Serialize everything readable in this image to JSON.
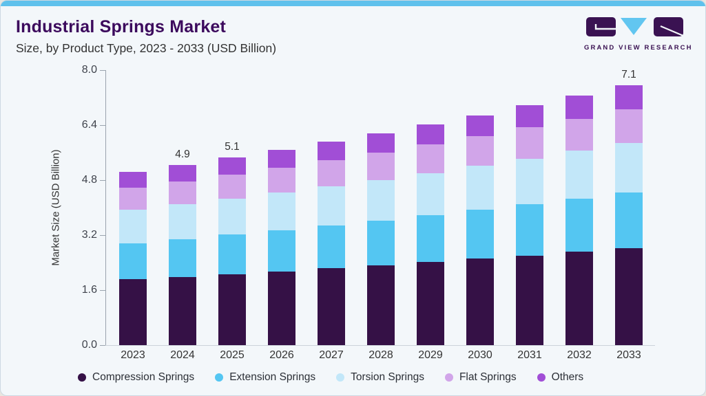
{
  "header": {
    "title": "Industrial Springs Market",
    "subtitle": "Size, by Product Type, 2023 - 2033 (USD Billion)",
    "brand": "GRAND VIEW RESEARCH"
  },
  "colors": {
    "accent_bar": "#5fc1ec",
    "card_bg": "#f3f7fa",
    "title": "#3c0a5d",
    "subtitle_text": "#333333",
    "axis": "#9aa3ad",
    "logo_purple": "#3a1252",
    "logo_blue": "#62c6f0"
  },
  "chart_data": {
    "type": "bar",
    "stacked": true,
    "title": "Industrial Springs Market",
    "subtitle": "Size, by Product Type, 2023 - 2033 (USD Billion)",
    "xlabel": "",
    "ylabel": "Market Size (USD Billion)",
    "categories": [
      "2023",
      "2024",
      "2025",
      "2026",
      "2027",
      "2028",
      "2029",
      "2030",
      "2031",
      "2032",
      "2033"
    ],
    "series": [
      {
        "name": "Compression Springs",
        "color": "#351146",
        "values": [
          1.79,
          1.86,
          1.93,
          2.01,
          2.09,
          2.17,
          2.26,
          2.35,
          2.44,
          2.54,
          2.64
        ]
      },
      {
        "name": "Extension Springs",
        "color": "#54c6f2",
        "values": [
          0.99,
          1.03,
          1.08,
          1.12,
          1.17,
          1.22,
          1.27,
          1.33,
          1.39,
          1.45,
          1.51
        ]
      },
      {
        "name": "Torsion Springs",
        "color": "#c2e7f9",
        "values": [
          0.9,
          0.94,
          0.98,
          1.02,
          1.06,
          1.11,
          1.15,
          1.2,
          1.25,
          1.3,
          1.36
        ]
      },
      {
        "name": "Flat Springs",
        "color": "#d1a5e9",
        "values": [
          0.6,
          0.63,
          0.65,
          0.68,
          0.71,
          0.74,
          0.78,
          0.81,
          0.85,
          0.88,
          0.92
        ]
      },
      {
        "name": "Others",
        "color": "#a14ed6",
        "values": [
          0.43,
          0.45,
          0.47,
          0.49,
          0.51,
          0.53,
          0.55,
          0.57,
          0.6,
          0.62,
          0.65
        ]
      }
    ],
    "bar_value_labels": [
      "",
      "4.9",
      "5.1",
      "",
      "",
      "",
      "",
      "",
      "",
      "",
      "7.1"
    ],
    "yticks": [
      "8.0",
      "6.4",
      "4.8",
      "3.2",
      "1.6",
      "0.0"
    ],
    "ylim": [
      0.0,
      8.0
    ],
    "grid": false,
    "legend_position": "bottom"
  }
}
